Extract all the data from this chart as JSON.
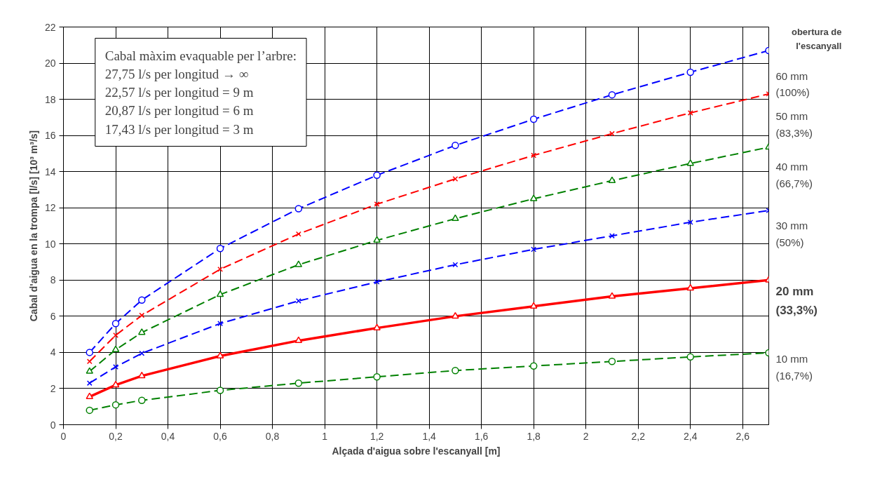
{
  "chart_data": {
    "type": "line",
    "xlabel": "Alçada d'aigua sobre l'escanyall [m]",
    "ylabel": "Cabal d'aigua en la trompa [l/s] [10³ m³/s]",
    "legend_title": "obertura de l'escanyall",
    "x": [
      0.1,
      0.2,
      0.3,
      0.6,
      0.9,
      1.2,
      1.5,
      1.8,
      2.1,
      2.4,
      2.7
    ],
    "series": [
      {
        "name": "60 mm (100%)",
        "color": "#0000ff",
        "marker": "circle",
        "line_style": "dashed",
        "values": [
          4.0,
          5.6,
          6.9,
          9.75,
          11.95,
          13.8,
          15.45,
          16.9,
          18.25,
          19.5,
          20.7
        ]
      },
      {
        "name": "50 mm (83,3%)",
        "color": "#ff0000",
        "marker": "cross",
        "line_style": "dashed",
        "values": [
          3.5,
          4.95,
          6.05,
          8.6,
          10.55,
          12.2,
          13.6,
          14.9,
          16.1,
          17.25,
          18.3
        ]
      },
      {
        "name": "40 mm (66,7%)",
        "color": "#008000",
        "marker": "triangle",
        "line_style": "dashed",
        "values": [
          2.95,
          4.15,
          5.1,
          7.2,
          8.85,
          10.2,
          11.4,
          12.5,
          13.5,
          14.45,
          15.35
        ]
      },
      {
        "name": "30 mm (50%)",
        "color": "#0000ff",
        "marker": "cross",
        "line_style": "dashed",
        "values": [
          2.3,
          3.2,
          3.95,
          5.6,
          6.85,
          7.9,
          8.85,
          9.7,
          10.45,
          11.2,
          11.85
        ]
      },
      {
        "name": "20 mm (33,3%)",
        "color": "#ff0000",
        "marker": "triangle",
        "line_style": "solid",
        "values": [
          1.55,
          2.2,
          2.7,
          3.8,
          4.65,
          5.35,
          6.0,
          6.55,
          7.1,
          7.55,
          8.0
        ]
      },
      {
        "name": "10 mm (16,7%)",
        "color": "#008000",
        "marker": "circle",
        "line_style": "dashed",
        "values": [
          0.8,
          1.1,
          1.35,
          1.9,
          2.3,
          2.65,
          3.0,
          3.25,
          3.5,
          3.75,
          3.98
        ]
      }
    ],
    "xlim": [
      0,
      2.7
    ],
    "xticks": [
      0,
      {
        "value": 0.2,
        "label": "0,2"
      },
      {
        "value": 0.4,
        "label": "0,4"
      },
      {
        "value": 0.6,
        "label": "0,6"
      },
      {
        "value": 0.8,
        "label": "0,8"
      },
      1,
      {
        "value": 1.2,
        "label": "1,2"
      },
      {
        "value": 1.4,
        "label": "1,4"
      },
      {
        "value": 1.6,
        "label": "1,6"
      },
      {
        "value": 1.8,
        "label": "1,8"
      },
      2,
      {
        "value": 2.2,
        "label": "2,2"
      },
      {
        "value": 2.4,
        "label": "2,4"
      },
      {
        "value": 2.6,
        "label": "2,6"
      }
    ],
    "ylim": [
      0,
      22
    ],
    "yticks": [
      0,
      2,
      4,
      6,
      8,
      10,
      12,
      14,
      16,
      18,
      20,
      22
    ],
    "grid": true,
    "annotations": [
      "Cabal màxim evaquable per l’arbre:",
      "27,75 l/s   per   longitud → ∞",
      "22,57 l/s   per   longitud  =  9 m",
      "20,87 l/s   per   longitud  =  6 m",
      "17,43 l/s   per   longitud  =  3 m"
    ]
  }
}
